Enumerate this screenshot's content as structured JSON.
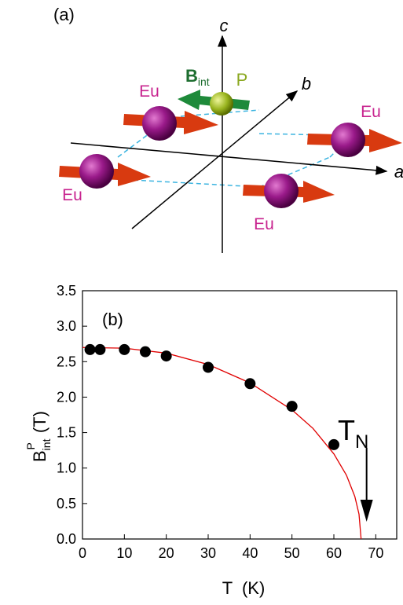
{
  "diagram": {
    "label": "(a)",
    "axis_c": "c",
    "axis_b": "b",
    "axis_a": "a",
    "atoms": [
      "Eu",
      "Eu",
      "Eu",
      "Eu"
    ],
    "p_label": "P",
    "field_main": "B",
    "field_sub": "int"
  },
  "chart_data": {
    "type": "scatter",
    "label": "(b)",
    "x_label": "T  (K)",
    "y_label_main": "B",
    "y_label_sub": "int",
    "y_label_sup": "P",
    "y_label_unit": "(T)",
    "annotation_main": "T",
    "annotation_sub": "N",
    "x": [
      1.8,
      4.2,
      10,
      15,
      20,
      30,
      40,
      50,
      60
    ],
    "values": [
      2.67,
      2.67,
      2.67,
      2.64,
      2.58,
      2.42,
      2.19,
      1.87,
      1.33
    ],
    "color": "#000000",
    "fit": {
      "color": "#e00000",
      "x": [
        0,
        10,
        20,
        30,
        40,
        50,
        55,
        60,
        63,
        65,
        66,
        66.5
      ],
      "values": [
        2.7,
        2.69,
        2.62,
        2.46,
        2.2,
        1.82,
        1.56,
        1.2,
        0.9,
        0.6,
        0.35,
        0
      ]
    },
    "xlim": [
      0,
      75
    ],
    "ylim": [
      0,
      3.5
    ],
    "xticks": [
      0,
      10,
      20,
      30,
      40,
      50,
      60,
      70
    ],
    "yticks": [
      {
        "value": 0,
        "label": "0.0"
      },
      0.5,
      {
        "value": 1,
        "label": "1.0"
      },
      1.5,
      {
        "value": 2,
        "label": "2.0"
      },
      2.5,
      {
        "value": 3,
        "label": "3.0"
      },
      3.5
    ]
  }
}
